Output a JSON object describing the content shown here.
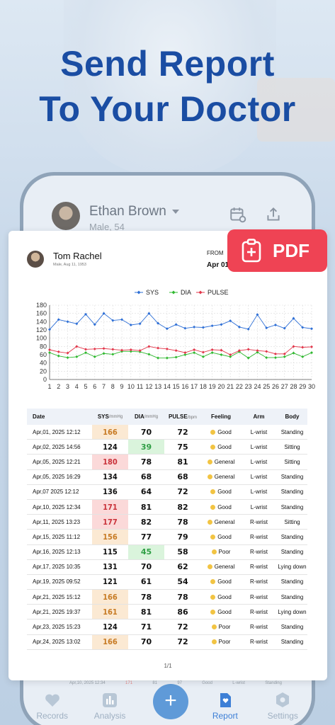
{
  "headline": {
    "line1": "Send Report",
    "line2": "To Your Doctor"
  },
  "app": {
    "user_name": "Ethan Brown",
    "user_sub": "Male, 54",
    "bg_row": [
      "Apr,10, 2025 12:34",
      "171",
      "81",
      "97",
      "Good",
      "L-wrist",
      "Standing"
    ],
    "tabs": [
      {
        "label": "Records",
        "icon": "heart-icon"
      },
      {
        "label": "Analysis",
        "icon": "bar-chart-icon"
      },
      {
        "label": "Report",
        "icon": "report-icon",
        "active": true
      },
      {
        "label": "Settings",
        "icon": "gear-icon"
      }
    ],
    "fab": "+"
  },
  "badge": {
    "label": "PDF",
    "icon": "clipboard-plus-icon",
    "color": "#ef4354"
  },
  "report": {
    "patient_name": "Tom Rachel",
    "patient_sub": "Male, Aug 11, 1953",
    "from_label": "FROM",
    "from_date": "Apr 01,",
    "page": "1/1"
  },
  "chart_data": {
    "type": "line",
    "x": [
      1,
      2,
      3,
      4,
      5,
      6,
      7,
      8,
      9,
      10,
      11,
      12,
      13,
      14,
      15,
      16,
      17,
      18,
      19,
      20,
      21,
      22,
      23,
      24,
      25,
      26,
      27,
      28,
      29,
      30
    ],
    "ylim": [
      0,
      180
    ],
    "yticks": [
      0,
      20,
      40,
      60,
      80,
      100,
      120,
      140,
      160,
      180
    ],
    "legend_position": "top",
    "grid": true,
    "series": [
      {
        "name": "SYS",
        "color": "#2e6fd6",
        "marker": "diamond",
        "values": [
          121,
          145,
          140,
          135,
          158,
          133,
          160,
          143,
          145,
          132,
          135,
          160,
          136,
          123,
          133,
          124,
          127,
          126,
          130,
          133,
          142,
          127,
          122,
          157,
          125,
          132,
          124,
          148,
          126,
          123
        ]
      },
      {
        "name": "DIA",
        "color": "#2fb82f",
        "marker": "diamond",
        "values": [
          65,
          57,
          53,
          55,
          65,
          55,
          63,
          61,
          68,
          68,
          67,
          61,
          52,
          52,
          54,
          60,
          65,
          55,
          65,
          60,
          55,
          67,
          52,
          66,
          53,
          53,
          55,
          64,
          55,
          65
        ]
      },
      {
        "name": "PULSE",
        "color": "#e2364a",
        "marker": "diamond",
        "values": [
          72,
          67,
          64,
          80,
          73,
          74,
          75,
          73,
          71,
          72,
          70,
          80,
          76,
          74,
          70,
          65,
          72,
          66,
          72,
          71,
          60,
          70,
          73,
          70,
          68,
          62,
          62,
          80,
          78,
          79
        ]
      }
    ]
  },
  "table": {
    "headers": {
      "date": "Date",
      "sys": "SYS",
      "sys_unit": "/mmHg",
      "dia": "DIA",
      "dia_unit": "/mmHg",
      "pulse": "PULSE",
      "pulse_unit": "/bpm",
      "feeling": "Feeling",
      "arm": "Arm",
      "body": "Body"
    },
    "rows": [
      {
        "date": "Apr,01, 2025 12:12",
        "sys": "166",
        "sys_flag": "orange",
        "dia": "70",
        "dia_flag": "",
        "pulse": "72",
        "feeling": "Good",
        "arm": "L-wrist",
        "body": "Standing"
      },
      {
        "date": "Apr,02, 2025 14:56",
        "sys": "124",
        "sys_flag": "",
        "dia": "39",
        "dia_flag": "green",
        "pulse": "75",
        "feeling": "Good",
        "arm": "L-wrist",
        "body": "Sitting"
      },
      {
        "date": "Apr,05, 2025 12:21",
        "sys": "180",
        "sys_flag": "red",
        "dia": "78",
        "dia_flag": "",
        "pulse": "81",
        "feeling": "General",
        "arm": "L-wrist",
        "body": "Sitting"
      },
      {
        "date": "Apr,05, 2025 16:29",
        "sys": "134",
        "sys_flag": "",
        "dia": "68",
        "dia_flag": "",
        "pulse": "68",
        "feeling": "General",
        "arm": "L-wrist",
        "body": "Standing"
      },
      {
        "date": "Apr,07 2025 12:12",
        "sys": "136",
        "sys_flag": "",
        "dia": "64",
        "dia_flag": "",
        "pulse": "72",
        "feeling": "Good",
        "arm": "L-wrist",
        "body": "Standing"
      },
      {
        "date": "Apr,10, 2025 12:34",
        "sys": "171",
        "sys_flag": "red",
        "dia": "81",
        "dia_flag": "",
        "pulse": "82",
        "feeling": "Good",
        "arm": "L-wrist",
        "body": "Standing"
      },
      {
        "date": "Apr,11, 2025 13:23",
        "sys": "177",
        "sys_flag": "red",
        "dia": "82",
        "dia_flag": "",
        "pulse": "78",
        "feeling": "General",
        "arm": "R-wrist",
        "body": "Sitting"
      },
      {
        "date": "Apr,15, 2025 11:12",
        "sys": "156",
        "sys_flag": "orange",
        "dia": "77",
        "dia_flag": "",
        "pulse": "79",
        "feeling": "Good",
        "arm": "R-wrist",
        "body": "Standing"
      },
      {
        "date": "Apr,16, 2025 12:13",
        "sys": "115",
        "sys_flag": "",
        "dia": "45",
        "dia_flag": "green",
        "pulse": "58",
        "feeling": "Poor",
        "arm": "R-wrist",
        "body": "Standing"
      },
      {
        "date": "Apr,17, 2025 10:35",
        "sys": "131",
        "sys_flag": "",
        "dia": "70",
        "dia_flag": "",
        "pulse": "62",
        "feeling": "General",
        "arm": "R-wrist",
        "body": "Lying down"
      },
      {
        "date": "Apr,19, 2025 09:52",
        "sys": "121",
        "sys_flag": "",
        "dia": "61",
        "dia_flag": "",
        "pulse": "54",
        "feeling": "Good",
        "arm": "R-wrist",
        "body": "Standing"
      },
      {
        "date": "Apr,21, 2025 15:12",
        "sys": "166",
        "sys_flag": "orange",
        "dia": "78",
        "dia_flag": "",
        "pulse": "78",
        "feeling": "Good",
        "arm": "R-wrist",
        "body": "Standing"
      },
      {
        "date": "Apr,21, 2025 19:37",
        "sys": "161",
        "sys_flag": "orange",
        "dia": "81",
        "dia_flag": "",
        "pulse": "86",
        "feeling": "Good",
        "arm": "R-wrist",
        "body": "Lying down"
      },
      {
        "date": "Apr,23, 2025 15:23",
        "sys": "124",
        "sys_flag": "",
        "dia": "71",
        "dia_flag": "",
        "pulse": "72",
        "feeling": "Poor",
        "arm": "R-wrist",
        "body": "Standing"
      },
      {
        "date": "Apr,24, 2025 13:02",
        "sys": "166",
        "sys_flag": "orange",
        "dia": "70",
        "dia_flag": "",
        "pulse": "72",
        "feeling": "Poor",
        "arm": "R-wrist",
        "body": "Standing"
      }
    ]
  }
}
